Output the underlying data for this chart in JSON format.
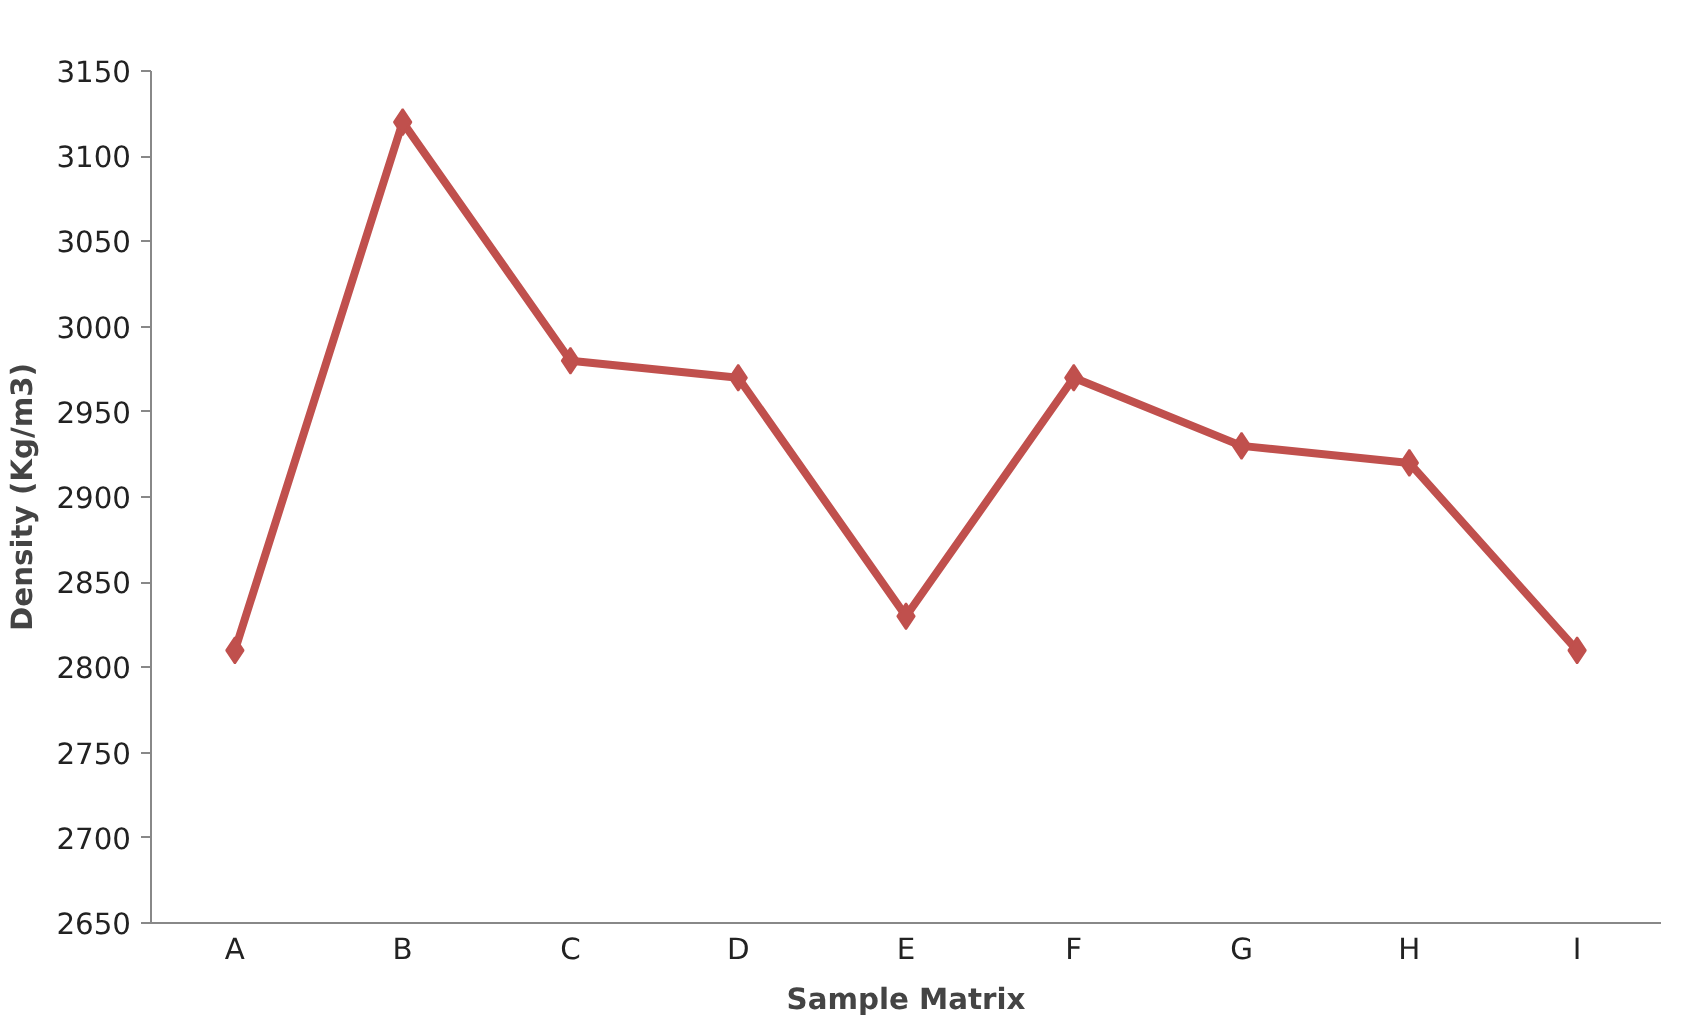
{
  "chart_data": {
    "type": "line",
    "xlabel": "Sample Matrix",
    "ylabel": "Density (Kg/m3)",
    "categories": [
      "A",
      "B",
      "C",
      "D",
      "E",
      "F",
      "G",
      "H",
      "I"
    ],
    "series": [
      {
        "color": "#c0504d",
        "values": [
          2810,
          3120,
          2980,
          2970,
          2830,
          2970,
          2930,
          2920,
          2810
        ]
      }
    ],
    "ylim": [
      2650,
      3150
    ],
    "yticks": [
      2650,
      2700,
      2750,
      2800,
      2850,
      2900,
      2950,
      3000,
      3050,
      3100,
      3150
    ],
    "marker": "diamond",
    "line_style": "solid"
  }
}
